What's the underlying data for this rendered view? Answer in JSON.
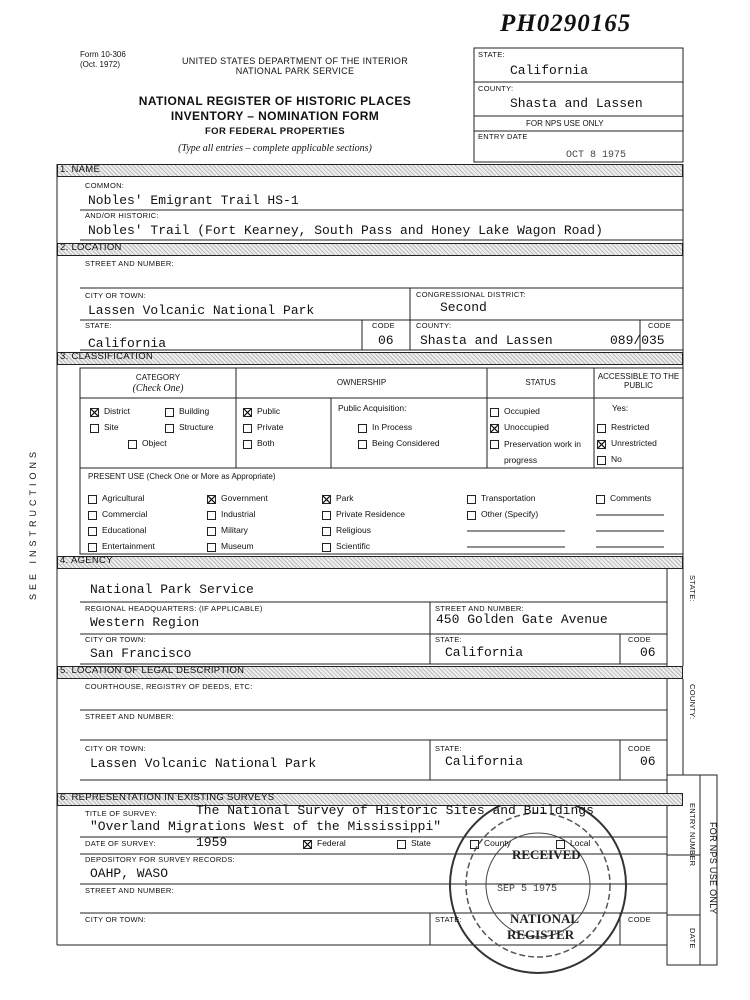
{
  "stamp_code": "PH0290165",
  "form": {
    "number": "Form 10-306",
    "date": "(Oct. 1972)"
  },
  "header": {
    "department": "UNITED STATES DEPARTMENT OF THE INTERIOR",
    "service": "NATIONAL PARK SERVICE",
    "title_lines": [
      "NATIONAL REGISTER OF HISTORIC PLACES",
      "INVENTORY – NOMINATION FORM",
      "FOR FEDERAL PROPERTIES"
    ],
    "instructions": "(Type all entries – complete applicable sections)"
  },
  "state_box": {
    "state_label": "STATE:",
    "state": "California",
    "county_label": "COUNTY:",
    "county": "Shasta and Lassen",
    "nps_use": "FOR NPS USE ONLY",
    "entry_date_label": "ENTRY DATE",
    "entry_date": "OCT 8 1975"
  },
  "side_label": "SEE INSTRUCTIONS",
  "name": {
    "heading": "1. NAME",
    "common_label": "COMMON:",
    "common": "Nobles' Emigrant Trail HS-1",
    "historic_label": "AND/OR HISTORIC:",
    "historic": "Nobles' Trail  (Fort Kearney, South Pass and Honey Lake Wagon Road)"
  },
  "location": {
    "heading": "2. LOCATION",
    "street_label": "STREET AND NUMBER:",
    "city_label": "CITY OR TOWN:",
    "city": "Lassen Volcanic National Park",
    "district_label": "CONGRESSIONAL DISTRICT:",
    "district": "Second",
    "state_label": "STATE:",
    "state": "California",
    "code_label": "CODE",
    "state_code": "06",
    "county_label": "COUNTY:",
    "county": "Shasta and Lassen",
    "county_code": "089/035"
  },
  "classification": {
    "heading": "3. CLASSIFICATION",
    "columns": [
      "CATEGORY",
      "OWNERSHIP",
      "STATUS",
      "ACCESSIBLE TO THE PUBLIC"
    ],
    "category_note": "(Check One)",
    "category": [
      {
        "label": "District",
        "checked": true
      },
      {
        "label": "Building",
        "checked": false
      },
      {
        "label": "Site",
        "checked": false
      },
      {
        "label": "Structure",
        "checked": false
      },
      {
        "label": "Object",
        "checked": false
      }
    ],
    "ownership": [
      {
        "label": "Public",
        "checked": true
      },
      {
        "label": "Private",
        "checked": false
      },
      {
        "label": "Both",
        "checked": false
      }
    ],
    "acquisition_label": "Public Acquisition:",
    "acquisition": [
      {
        "label": "In Process",
        "checked": false
      },
      {
        "label": "Being Considered",
        "checked": false
      }
    ],
    "status": [
      {
        "label": "Occupied",
        "checked": false
      },
      {
        "label": "Unoccupied",
        "checked": true
      },
      {
        "label": "Preservation work in progress",
        "checked": false
      }
    ],
    "access_label": "Yes:",
    "access": [
      {
        "label": "Restricted",
        "checked": false
      },
      {
        "label": "Unrestricted",
        "checked": true
      },
      {
        "label": "No",
        "checked": false
      }
    ],
    "present_use_label": "PRESENT USE (Check One or More as Appropriate)",
    "present_use": [
      {
        "label": "Agricultural",
        "checked": false
      },
      {
        "label": "Commercial",
        "checked": false
      },
      {
        "label": "Educational",
        "checked": false
      },
      {
        "label": "Entertainment",
        "checked": false
      },
      {
        "label": "Government",
        "checked": true
      },
      {
        "label": "Industrial",
        "checked": false
      },
      {
        "label": "Military",
        "checked": false
      },
      {
        "label": "Museum",
        "checked": false
      },
      {
        "label": "Park",
        "checked": true
      },
      {
        "label": "Private Residence",
        "checked": false
      },
      {
        "label": "Religious",
        "checked": false
      },
      {
        "label": "Scientific",
        "checked": false
      },
      {
        "label": "Transportation",
        "checked": false
      },
      {
        "label": "Other (Specify)",
        "checked": false
      },
      {
        "label": "Comments",
        "checked": false
      }
    ]
  },
  "agency": {
    "heading": "4. AGENCY",
    "agency": "National Park Service",
    "hq_label": "REGIONAL HEADQUARTERS: (If applicable)",
    "hq": "Western Region",
    "street_label": "STREET AND NUMBER:",
    "street": "450 Golden Gate Avenue",
    "city_label": "CITY OR TOWN:",
    "city": "San Francisco",
    "state_label": "STATE:",
    "state": "California",
    "code_label": "CODE",
    "code": "06",
    "side_label": "STATE:"
  },
  "legal": {
    "heading": "5. LOCATION OF LEGAL DESCRIPTION",
    "courthouse_label": "COURTHOUSE, REGISTRY OF DEEDS, ETC:",
    "street_label": "STREET AND NUMBER:",
    "city_label": "CITY OR TOWN:",
    "city": "Lassen Volcanic National Park",
    "state_label": "STATE:",
    "state": "California",
    "code_label": "CODE",
    "code": "06",
    "side_label": "COUNTY:"
  },
  "surveys": {
    "heading": "6. REPRESENTATION IN EXISTING SURVEYS",
    "title_label": "TITLE OF SURVEY:",
    "title_lines": [
      "The National Survey of Historic Sites and Buildings",
      "\"Overland Migrations West of the Mississippi\""
    ],
    "date_label": "DATE OF SURVEY:",
    "date": "1959",
    "levels": [
      {
        "label": "Federal",
        "checked": true
      },
      {
        "label": "State",
        "checked": false
      },
      {
        "label": "County",
        "checked": false
      },
      {
        "label": "Local",
        "checked": false
      }
    ],
    "depository_label": "DEPOSITORY FOR SURVEY RECORDS:",
    "depository": "OAHP, WASO",
    "street_label": "STREET AND NUMBER:",
    "city_label": "CITY OR TOWN:",
    "state_label": "STATE:",
    "code_label": "CODE",
    "nps_side": "FOR NPS USE ONLY",
    "entry_number_label": "ENTRY NUMBER",
    "date_side_label": "DATE"
  },
  "stamp": {
    "received": "RECEIVED",
    "date": "SEP 5 1975",
    "lines": [
      "NATIONAL",
      "REGISTER"
    ]
  }
}
